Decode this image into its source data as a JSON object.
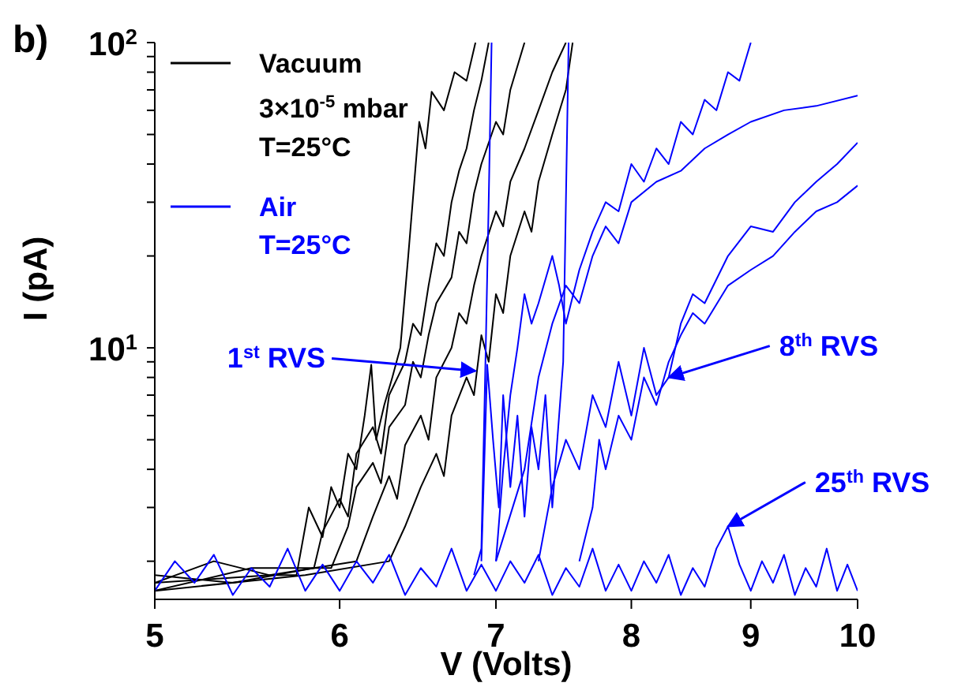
{
  "chart_data": {
    "type": "line",
    "title": "b)",
    "xlabel": "V (Volts)",
    "ylabel": "I (pA)",
    "log": "xy",
    "legend": "top left",
    "xlim": [
      5,
      10
    ],
    "xticks": [
      5,
      6,
      7,
      8,
      9,
      10
    ],
    "ylim": [
      1.5,
      100
    ],
    "yticks": [
      {
        "value": 2,
        "label": null
      },
      {
        "value": 3,
        "label": null
      },
      {
        "value": 4,
        "label": null
      },
      {
        "value": 5,
        "label": null
      },
      {
        "value": 6,
        "label": null
      },
      {
        "value": 7,
        "label": null
      },
      {
        "value": 8,
        "label": null
      },
      {
        "value": 9,
        "label": null
      },
      {
        "value": 10,
        "label": "10$^{1}$"
      },
      {
        "value": 20,
        "label": null
      },
      {
        "value": 30,
        "label": null
      },
      {
        "value": 40,
        "label": null
      },
      {
        "value": 50,
        "label": null
      },
      {
        "value": 60,
        "label": null
      },
      {
        "value": 70,
        "label": null
      },
      {
        "value": 80,
        "label": null
      },
      {
        "value": 90,
        "label": null
      },
      {
        "value": 100,
        "label": "10$^{2}$"
      }
    ],
    "series": [
      {
        "name": "Vacuum\n3×10$^{-5}$ mbar\nT=25°C",
        "color": "#000000",
        "x": [
          5,
          5.3,
          5.6,
          5.75,
          5.82,
          5.9,
          5.95,
          6.0,
          6.05,
          6.1,
          6.15,
          6.19,
          6.22,
          6.27,
          6.32,
          6.37,
          6.42,
          6.49,
          6.53,
          6.57,
          6.65,
          6.72,
          6.8,
          6.86
        ],
        "values": [
          1.7,
          2.0,
          1.8,
          1.8,
          3.0,
          2.4,
          3.5,
          3.0,
          4.5,
          4,
          6,
          8.8,
          5,
          6.5,
          8,
          10,
          20,
          55,
          45,
          69,
          60,
          80,
          75,
          100
        ]
      },
      {
        "color": "#000000",
        "x": [
          5,
          5.4,
          5.85,
          5.9,
          6.0,
          6.05,
          6.1,
          6.2,
          6.25,
          6.3,
          6.4,
          6.45,
          6.5,
          6.55,
          6.6,
          6.65,
          6.7,
          6.75,
          6.8,
          6.85,
          6.9,
          6.95
        ],
        "values": [
          1.8,
          1.7,
          1.9,
          2.5,
          3.2,
          2.8,
          4.5,
          5.5,
          4.5,
          7,
          9,
          12,
          11,
          16,
          22,
          20,
          30,
          38,
          45,
          60,
          75,
          100
        ]
      },
      {
        "color": "#000000",
        "x": [
          5,
          5.5,
          5.95,
          6.05,
          6.1,
          6.2,
          6.25,
          6.3,
          6.4,
          6.45,
          6.5,
          6.55,
          6.6,
          6.7,
          6.75,
          6.8,
          6.85,
          6.9,
          7.0,
          7.05,
          7.1,
          7.2
        ],
        "values": [
          1.6,
          1.9,
          1.9,
          2.6,
          3.5,
          4.2,
          3.6,
          5.5,
          6.5,
          9,
          8,
          11,
          14,
          17,
          24,
          22,
          32,
          40,
          55,
          50,
          70,
          100
        ]
      },
      {
        "color": "#000000",
        "x": [
          5,
          5.6,
          6.1,
          6.2,
          6.3,
          6.35,
          6.4,
          6.5,
          6.55,
          6.6,
          6.7,
          6.75,
          6.8,
          6.85,
          6.9,
          7.0,
          7.05,
          7.1,
          7.2,
          7.3,
          7.4,
          7.5
        ],
        "values": [
          1.7,
          1.8,
          2.0,
          2.8,
          3.8,
          3.2,
          4.8,
          6,
          5,
          8,
          10,
          13,
          12,
          16,
          20,
          28,
          25,
          35,
          45,
          60,
          80,
          100
        ]
      },
      {
        "color": "#000000",
        "x": [
          5,
          5.8,
          6.3,
          6.4,
          6.5,
          6.6,
          6.65,
          6.7,
          6.8,
          6.85,
          6.9,
          6.95,
          7.0,
          7.05,
          7.1,
          7.2,
          7.25,
          7.3,
          7.4,
          7.5,
          7.55
        ],
        "values": [
          1.6,
          1.8,
          2.0,
          2.6,
          3.5,
          4.5,
          3.8,
          6,
          8,
          7,
          11,
          9,
          15,
          13,
          20,
          28,
          24,
          35,
          50,
          70,
          100
        ]
      },
      {
        "name": "Air\nT=25°C",
        "color": "#0000ff",
        "x": [
          5,
          5.1,
          5.2,
          5.3,
          5.4,
          5.5,
          5.6,
          5.7,
          5.8,
          5.9,
          6.0,
          6.1,
          6.2,
          6.3,
          6.4,
          6.5,
          6.6,
          6.7,
          6.8,
          6.9,
          7.0,
          7.1,
          7.2,
          7.3,
          7.4,
          7.5,
          7.6,
          7.7,
          7.8,
          7.9,
          8.0,
          8.1,
          8.2,
          8.3,
          8.4,
          8.5,
          8.6,
          8.7,
          8.8,
          8.9,
          9.0,
          9.1,
          9.2,
          9.3,
          9.4,
          9.5,
          9.6,
          9.7,
          9.8,
          9.9,
          10
        ],
        "values": [
          1.6,
          2.0,
          1.7,
          2.1,
          1.55,
          1.9,
          1.65,
          2.2,
          1.6,
          1.95,
          1.6,
          2.0,
          1.7,
          2.1,
          1.55,
          1.9,
          1.65,
          2.2,
          1.6,
          1.95,
          1.6,
          2.0,
          1.7,
          2.1,
          1.55,
          1.9,
          1.65,
          2.2,
          1.6,
          1.95,
          1.6,
          2.0,
          1.7,
          2.1,
          1.55,
          1.9,
          1.65,
          2.2,
          2.6,
          1.95,
          1.6,
          2.0,
          1.7,
          2.1,
          1.55,
          1.9,
          1.65,
          2.2,
          1.6,
          1.95,
          1.6
        ]
      },
      {
        "color": "#0000ff",
        "x": [
          6.85,
          6.9,
          6.93,
          6.95,
          6.97
        ],
        "values": [
          1.8,
          2.2,
          10,
          30,
          100
        ]
      },
      {
        "color": "#0000ff",
        "x": [
          6.9,
          6.94,
          6.98,
          7.02,
          7.05,
          7.1,
          7.15,
          7.2,
          7.25,
          7.3,
          7.35,
          7.4,
          7.45,
          7.48,
          7.5,
          7.52
        ],
        "values": [
          2,
          8.8,
          5,
          3,
          7,
          3.5,
          6,
          2.8,
          5.5,
          4,
          7,
          3,
          6,
          9,
          30,
          100
        ]
      },
      {
        "color": "#0000ff",
        "x": [
          7.0,
          7.05,
          7.1,
          7.15,
          7.2,
          7.25,
          7.3,
          7.4,
          7.45,
          7.5,
          7.6,
          7.7,
          7.8,
          7.9,
          8.0,
          8.1,
          8.2,
          8.3,
          8.4,
          8.5,
          8.6,
          8.7,
          8.8,
          8.9,
          9.0
        ],
        "values": [
          2,
          4,
          7,
          10,
          15,
          12,
          14,
          20,
          16,
          12,
          18,
          24,
          30,
          28,
          40,
          35,
          45,
          40,
          55,
          50,
          65,
          60,
          80,
          75,
          100
        ]
      },
      {
        "color": "#0000ff",
        "x": [
          7.0,
          7.2,
          7.3,
          7.4,
          7.5,
          7.6,
          7.7,
          7.8,
          7.9,
          8.0,
          8.2,
          8.4,
          8.6,
          8.8,
          9.0,
          9.3,
          9.6,
          10
        ],
        "values": [
          2,
          4,
          8,
          12,
          16,
          14,
          20,
          25,
          22,
          30,
          35,
          38,
          45,
          50,
          55,
          60,
          62,
          67
        ]
      },
      {
        "color": "#0000ff",
        "x": [
          7.3,
          7.4,
          7.5,
          7.6,
          7.7,
          7.8,
          7.9,
          8.0,
          8.1,
          8.2,
          8.3,
          8.4,
          8.5,
          8.6,
          8.8,
          9.0,
          9.2,
          9.4,
          9.6,
          9.8,
          10
        ],
        "values": [
          2,
          3.5,
          5,
          4,
          7,
          5.5,
          9,
          6,
          10,
          7,
          8,
          12,
          15,
          14,
          20,
          25,
          24,
          30,
          35,
          40,
          47
        ]
      },
      {
        "color": "#0000ff",
        "x": [
          7.6,
          7.7,
          7.75,
          7.8,
          7.9,
          8.0,
          8.1,
          8.2,
          8.3,
          8.4,
          8.5,
          8.6,
          8.8,
          9.0,
          9.2,
          9.4,
          9.6,
          9.8,
          10
        ],
        "values": [
          2,
          3,
          5,
          4,
          6,
          5,
          8,
          6.5,
          9,
          11,
          13,
          12,
          16,
          18,
          20,
          24,
          28,
          30,
          34
        ]
      }
    ],
    "annotations": [
      {
        "text": "1$^{st}$ RVS",
        "x": 6.86,
        "y": 8.4
      },
      {
        "text": "8$^{th}$ RVS",
        "x": 8.3,
        "y": 8
      },
      {
        "text": "25$^{th}$ RVS",
        "x": 8.8,
        "y": 2.6
      }
    ]
  }
}
